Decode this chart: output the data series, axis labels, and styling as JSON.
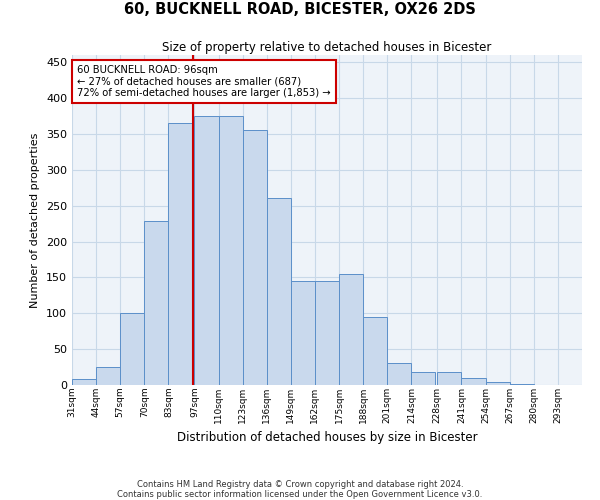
{
  "title": "60, BUCKNELL ROAD, BICESTER, OX26 2DS",
  "subtitle": "Size of property relative to detached houses in Bicester",
  "xlabel": "Distribution of detached houses by size in Bicester",
  "ylabel": "Number of detached properties",
  "bin_labels": [
    "31sqm",
    "44sqm",
    "57sqm",
    "70sqm",
    "83sqm",
    "97sqm",
    "110sqm",
    "123sqm",
    "136sqm",
    "149sqm",
    "162sqm",
    "175sqm",
    "188sqm",
    "201sqm",
    "214sqm",
    "228sqm",
    "241sqm",
    "254sqm",
    "267sqm",
    "280sqm",
    "293sqm"
  ],
  "bin_edges": [
    31,
    44,
    57,
    70,
    83,
    97,
    110,
    123,
    136,
    149,
    162,
    175,
    188,
    201,
    214,
    228,
    241,
    254,
    267,
    280,
    293
  ],
  "bar_heights": [
    8,
    25,
    100,
    228,
    365,
    375,
    375,
    355,
    260,
    145,
    145,
    155,
    95,
    30,
    18,
    18,
    10,
    4,
    2
  ],
  "bar_color": "#c9d9ed",
  "bar_edge_color": "#5b8fc9",
  "grid_color": "#c8d8e8",
  "background_color": "#eef3f9",
  "vline_x": 96,
  "vline_color": "#cc0000",
  "annotation_line1": "60 BUCKNELL ROAD: 96sqm",
  "annotation_line2": "← 27% of detached houses are smaller (687)",
  "annotation_line3": "72% of semi-detached houses are larger (1,853) →",
  "annotation_box_color": "#ffffff",
  "annotation_box_edge": "#cc0000",
  "ylim": [
    0,
    460
  ],
  "yticks": [
    0,
    50,
    100,
    150,
    200,
    250,
    300,
    350,
    400,
    450
  ],
  "footnote1": "Contains HM Land Registry data © Crown copyright and database right 2024.",
  "footnote2": "Contains public sector information licensed under the Open Government Licence v3.0."
}
